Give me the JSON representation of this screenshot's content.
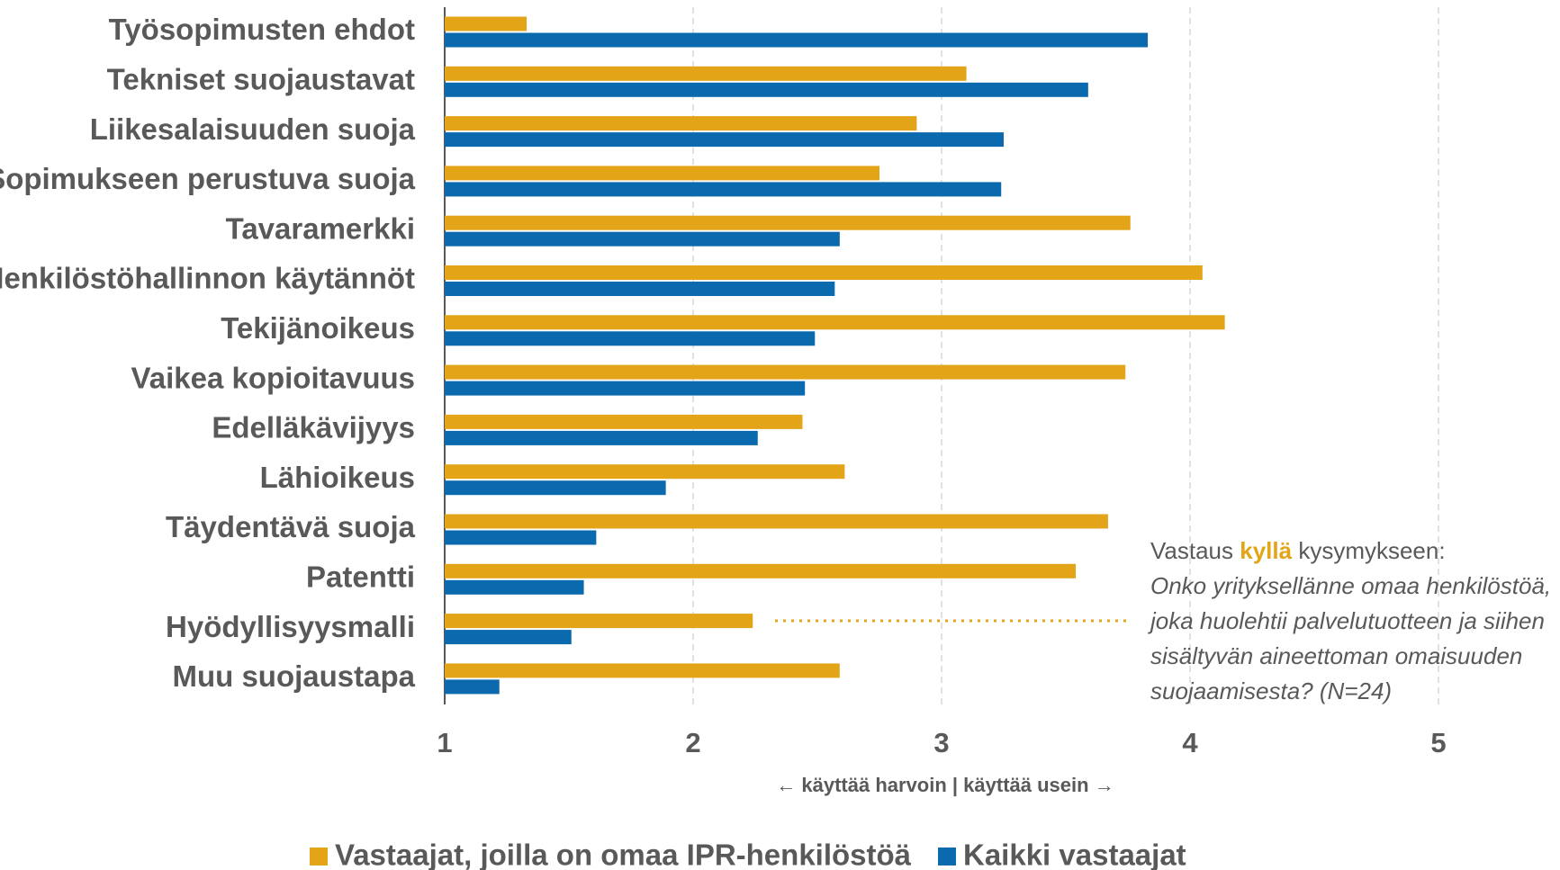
{
  "chart_data": {
    "type": "barh",
    "categories": [
      "Työsopimusten ehdot",
      "Tekniset suojaustavat",
      "Liikesalaisuuden suoja",
      "Sopimukseen perustuva suoja",
      "Tavaramerkki",
      "Henkilöstöhallinnon käytännöt",
      "Tekijänoikeus",
      "Vaikea kopioitavuus",
      "Edelläkävijyys",
      "Lähioikeus",
      "Täydentävä suoja",
      "Patentti",
      "Hyödyllisyysmalli",
      "Muu suojaustapa"
    ],
    "series": [
      {
        "name": "Vastaajat, joilla on omaa IPR-henkilöstöä",
        "color": "#e3a418",
        "values": [
          1.33,
          3.1,
          2.9,
          2.75,
          3.76,
          4.05,
          4.14,
          3.74,
          2.44,
          2.61,
          3.67,
          3.54,
          2.24,
          2.59
        ]
      },
      {
        "name": "Kaikki vastaajat",
        "color": "#0a6aad",
        "values": [
          3.83,
          3.59,
          3.25,
          3.24,
          2.59,
          2.57,
          2.49,
          2.45,
          2.26,
          1.89,
          1.61,
          1.56,
          1.51,
          1.22
        ]
      }
    ],
    "xlim": [
      1,
      5
    ],
    "xticks": [
      1,
      2,
      3,
      4,
      5
    ],
    "grid": true,
    "axis_note": "← käyttää harvoin  |  käyttää usein →",
    "annotation": {
      "prefix": "Vastaus",
      "highlight": "kyllä",
      "suffix": "kysymykseen:",
      "question": [
        "Onko yrityksellänne omaa henkilöstöä,",
        "joka huolehtii palvelutuotteen ja siihen",
        "sisältyvän aineettoman omaisuuden",
        "suojaamisesta? (N=24)"
      ]
    }
  }
}
